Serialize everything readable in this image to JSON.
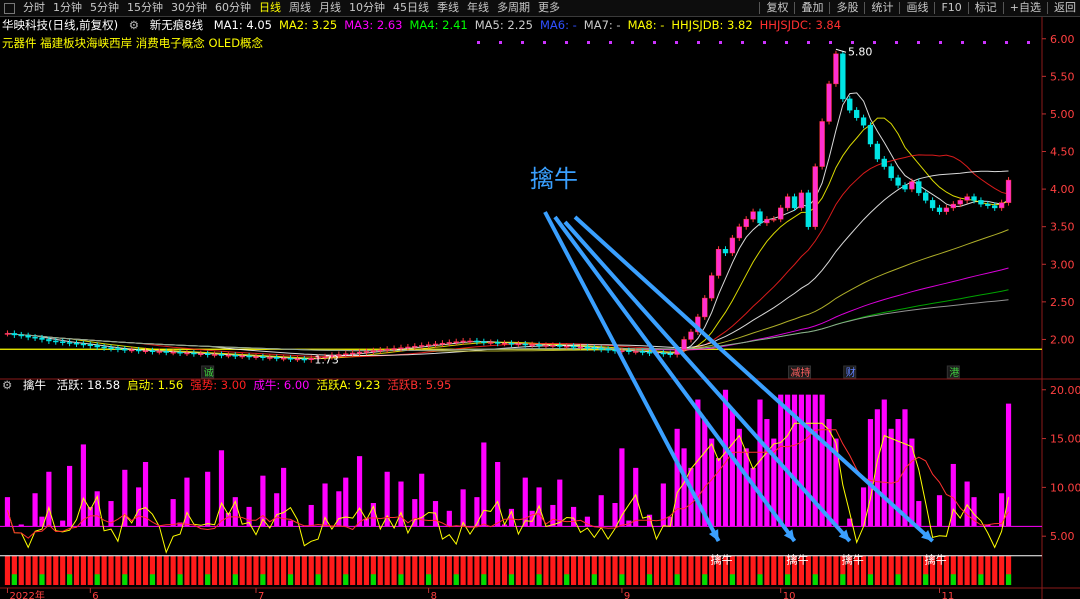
{
  "toolbar": {
    "periods": [
      "分时",
      "1分钟",
      "5分钟",
      "15分钟",
      "30分钟",
      "60分钟",
      "日线",
      "周线",
      "月线",
      "10分钟",
      "45日线",
      "季线",
      "年线",
      "多周期",
      "更多"
    ],
    "active_period": "日线",
    "right_items": [
      "复权",
      "叠加",
      "多股",
      "统计",
      "画线",
      "F10",
      "标记",
      "+自选",
      "返回"
    ]
  },
  "main_legend": {
    "stock": "华映科技(日线,前复权)",
    "indicator": "新无痕8线",
    "items": [
      {
        "label": "MA1: 4.05",
        "color": "#ffffff"
      },
      {
        "label": "MA2: 3.25",
        "color": "#ffff00"
      },
      {
        "label": "MA3: 2.63",
        "color": "#ff00ff"
      },
      {
        "label": "MA4: 2.41",
        "color": "#00ff00"
      },
      {
        "label": "MA5: 2.25",
        "color": "#cccccc"
      },
      {
        "label": "MA6: -",
        "color": "#3050ff"
      },
      {
        "label": "MA7: -",
        "color": "#cccccc"
      },
      {
        "label": "MA8: -",
        "color": "#ffff00"
      },
      {
        "label": "HHJSJDB: 3.82",
        "color": "#ffff00"
      },
      {
        "label": "HHJSJDC: 3.84",
        "color": "#ff3030"
      }
    ],
    "concepts": "元器件 福建板块海峡西岸 消费电子概念 OLED概念"
  },
  "sub_legend": {
    "name": "擒牛",
    "items": [
      {
        "label": "活跃: 18.58",
        "color": "#ffffff"
      },
      {
        "label": "启动: 1.56",
        "color": "#ffff00"
      },
      {
        "label": "强势: 3.00",
        "color": "#ff2020"
      },
      {
        "label": "成牛: 6.00",
        "color": "#ff00ff"
      },
      {
        "label": "活跃A: 9.23",
        "color": "#ffff00"
      },
      {
        "label": "活跃B: 5.95",
        "color": "#ff3030"
      }
    ]
  },
  "annotation": {
    "label": "擒牛",
    "color": "#3aa0ff"
  },
  "signal_label": "擒牛",
  "event_marks": [
    {
      "label": "诚",
      "color": "#40d040"
    },
    {
      "label": "减持",
      "color": "#ff6060"
    },
    {
      "label": "财",
      "color": "#6080ff"
    },
    {
      "label": "港",
      "color": "#40d040"
    }
  ],
  "chart_data": [
    {
      "type": "candlestick",
      "title": "华映科技(日线,前复权)",
      "y_ticks": [
        "6.00",
        "5.50",
        "5.00",
        "4.50",
        "4.00",
        "3.50",
        "3.00",
        "2.50",
        "2.00"
      ],
      "ylim": [
        1.7,
        6.05
      ],
      "annotations": [
        "5.80",
        "1.73"
      ],
      "horizontal_line": 1.87,
      "x_ticks": [
        "2022年",
        "6",
        "7",
        "8",
        "9",
        "10",
        "11"
      ],
      "candles_close_approx": [
        2.08,
        2.06,
        2.05,
        2.03,
        2.02,
        2.0,
        1.98,
        1.97,
        1.96,
        1.95,
        1.94,
        1.93,
        1.92,
        1.9,
        1.89,
        1.88,
        1.87,
        1.86,
        1.86,
        1.85,
        1.85,
        1.84,
        1.84,
        1.83,
        1.83,
        1.82,
        1.82,
        1.81,
        1.81,
        1.8,
        1.8,
        1.79,
        1.79,
        1.78,
        1.78,
        1.77,
        1.77,
        1.76,
        1.76,
        1.75,
        1.75,
        1.74,
        1.74,
        1.73,
        1.75,
        1.76,
        1.77,
        1.79,
        1.8,
        1.81,
        1.82,
        1.83,
        1.84,
        1.85,
        1.86,
        1.87,
        1.88,
        1.89,
        1.9,
        1.91,
        1.92,
        1.93,
        1.94,
        1.95,
        1.96,
        1.97,
        1.98,
        1.98,
        1.97,
        1.96,
        1.96,
        1.95,
        1.95,
        1.94,
        1.94,
        1.93,
        1.93,
        1.92,
        1.92,
        1.92,
        1.91,
        1.91,
        1.9,
        1.9,
        1.89,
        1.88,
        1.87,
        1.86,
        1.85,
        1.85,
        1.84,
        1.84,
        1.83,
        1.82,
        1.82,
        1.81,
        1.8,
        1.87,
        2.0,
        2.1,
        2.3,
        2.55,
        2.85,
        3.2,
        3.15,
        3.35,
        3.5,
        3.6,
        3.7,
        3.55,
        3.6,
        3.6,
        3.75,
        3.9,
        3.75,
        3.95,
        3.5,
        4.3,
        4.9,
        5.4,
        5.8,
        5.2,
        5.05,
        4.95,
        4.85,
        4.6,
        4.4,
        4.3,
        4.15,
        4.05,
        4.0,
        4.1,
        3.95,
        3.85,
        3.75,
        3.7,
        3.75,
        3.8,
        3.85,
        3.9,
        3.85,
        3.8,
        3.78,
        3.75,
        3.82,
        4.12
      ]
    },
    {
      "type": "bar",
      "title": "擒牛",
      "y_ticks": [
        "20.00",
        "15.00",
        "10.00",
        "5.00"
      ],
      "ylim": [
        0,
        21
      ],
      "hlines": [
        3.0,
        6.0
      ],
      "signals": [
        {
          "label": "擒牛",
          "index": 103
        },
        {
          "label": "擒牛",
          "index": 114
        },
        {
          "label": "擒牛",
          "index": 122
        },
        {
          "label": "擒牛",
          "index": 134
        }
      ]
    }
  ]
}
